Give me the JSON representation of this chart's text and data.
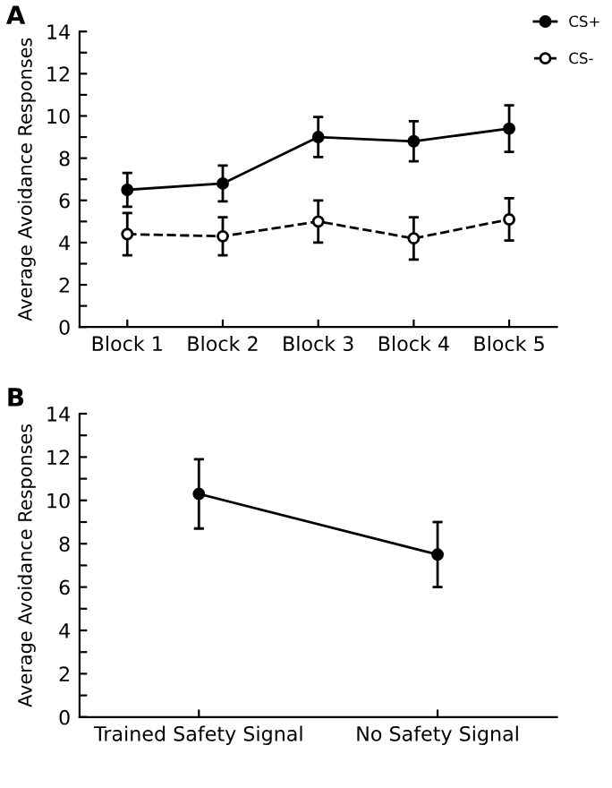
{
  "chart_data": [
    {
      "type": "line",
      "title": "A",
      "ylabel": "Average Avoidance Responses",
      "categories": [
        "Block 1",
        "Block 2",
        "Block 3",
        "Block 4",
        "Block 5"
      ],
      "series": [
        {
          "name": "CS+",
          "color": "#000000",
          "values": [
            6.5,
            6.8,
            9.0,
            8.8,
            9.4
          ],
          "errors": [
            0.8,
            0.85,
            0.95,
            0.95,
            1.1
          ],
          "marker": "circle",
          "line_style": "solid"
        },
        {
          "name": "CS-",
          "color": "#000000",
          "values": [
            4.4,
            4.3,
            5.0,
            4.2,
            5.1
          ],
          "errors": [
            1.0,
            0.9,
            1.0,
            1.0,
            1.0
          ],
          "marker": "circle",
          "line_style": "dashed"
        }
      ],
      "ylim": [
        0,
        14
      ],
      "yticks": [
        0,
        {
          "value": 1,
          "label": null
        },
        2,
        {
          "value": 3,
          "label": null
        },
        4,
        {
          "value": 5,
          "label": null
        },
        6,
        {
          "value": 7,
          "label": null
        },
        8,
        {
          "value": 9,
          "label": null
        },
        10,
        {
          "value": 11,
          "label": null
        },
        12,
        {
          "value": 13,
          "label": null
        },
        14
      ],
      "legend": "top right",
      "grid": false
    },
    {
      "type": "line",
      "title": "B",
      "ylabel": "Average Avoidance Responses",
      "categories": [
        "Trained Safety Signal",
        "No Safety Signal"
      ],
      "series": [
        {
          "color": "#000000",
          "values": [
            10.3,
            7.5
          ],
          "errors": [
            [
              8.7,
              11.9
            ],
            [
              6.0,
              9.0
            ]
          ],
          "marker": "circle",
          "line_style": "solid"
        }
      ],
      "ylim": [
        0,
        14
      ],
      "yticks": [
        0,
        {
          "value": 1,
          "label": null
        },
        2,
        {
          "value": 3,
          "label": null
        },
        4,
        {
          "value": 5,
          "label": null
        },
        6,
        {
          "value": 7,
          "label": null
        },
        8,
        {
          "value": 9,
          "label": null
        },
        10,
        {
          "value": 11,
          "label": null
        },
        12,
        {
          "value": 13,
          "label": null
        },
        14
      ],
      "grid": false
    }
  ]
}
